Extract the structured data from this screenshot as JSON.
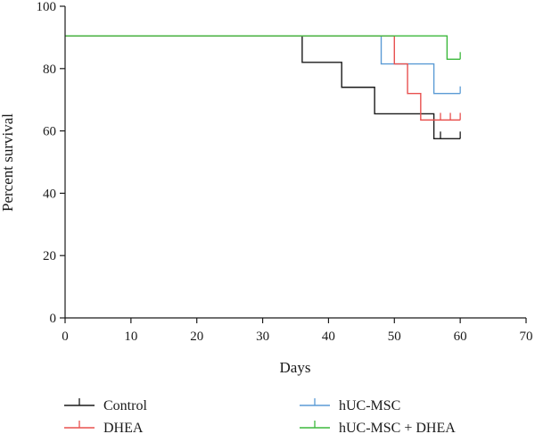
{
  "chart_data": {
    "type": "line",
    "subtype": "kaplan-meier-step",
    "title": "",
    "xlabel": "Days",
    "ylabel": "Percent survival",
    "xlim": [
      0,
      70
    ],
    "ylim": [
      0,
      100
    ],
    "xticks": [
      0,
      10,
      20,
      30,
      40,
      50,
      60,
      70
    ],
    "yticks": [
      0,
      20,
      40,
      60,
      80,
      100
    ],
    "grid": false,
    "legend_position": "bottom",
    "series": [
      {
        "name": "Control",
        "color": "#1a1a1a",
        "steps": [
          [
            0,
            90.5
          ],
          [
            36,
            82
          ],
          [
            42,
            74
          ],
          [
            47,
            65.5
          ],
          [
            56,
            57.5
          ],
          [
            60,
            57.5
          ]
        ],
        "censored": [
          [
            57,
            57.5
          ],
          [
            60,
            57.5
          ]
        ]
      },
      {
        "name": "hUC-MSC",
        "color": "#5b9bd5",
        "steps": [
          [
            0,
            90.5
          ],
          [
            48,
            81.5
          ],
          [
            56,
            72
          ],
          [
            60,
            72
          ]
        ],
        "censored": [
          [
            60,
            72
          ]
        ]
      },
      {
        "name": "DHEA",
        "color": "#e8514f",
        "steps": [
          [
            0,
            90.5
          ],
          [
            50,
            81.5
          ],
          [
            52,
            72
          ],
          [
            54,
            63.5
          ],
          [
            60,
            63.5
          ]
        ],
        "censored": [
          [
            57,
            63.5
          ],
          [
            58.5,
            63.5
          ],
          [
            60,
            63.5
          ]
        ]
      },
      {
        "name": "hUC-MSC + DHEA",
        "color": "#3cb83c",
        "steps": [
          [
            0,
            90.5
          ],
          [
            58,
            83
          ],
          [
            60,
            83
          ]
        ],
        "censored": [
          [
            60,
            83
          ]
        ]
      }
    ]
  }
}
